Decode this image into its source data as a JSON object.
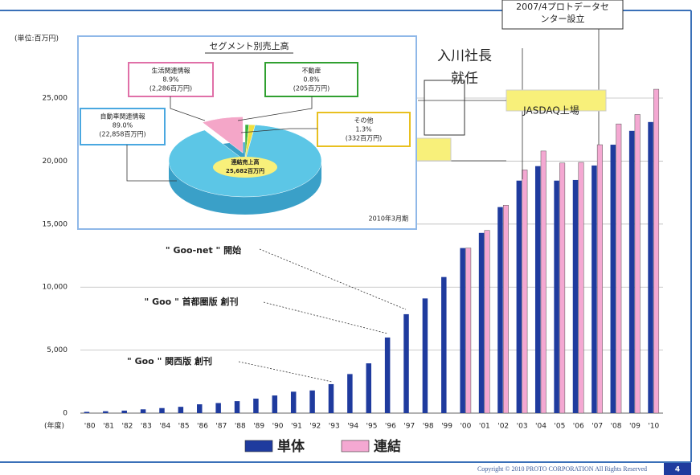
{
  "chart_data": [
    {
      "type": "bar",
      "y_label": "(単位:百万円)",
      "x_label": "(年度)",
      "categories": [
        "'80",
        "'81",
        "'82",
        "'83",
        "'84",
        "'85",
        "'86",
        "'87",
        "'88",
        "'89",
        "'90",
        "'91",
        "'92",
        "'93",
        "'94",
        "'95",
        "'96",
        "'97",
        "'98",
        "'99",
        "'00",
        "'01",
        "'02",
        "'03",
        "'04",
        "'05",
        "'06",
        "'07",
        "'08",
        "'09",
        "'10"
      ],
      "series": [
        {
          "name": "単体",
          "color": "#1f3b9e",
          "values": [
            100,
            150,
            200,
            300,
            400,
            500,
            700,
            800,
            950,
            1150,
            1400,
            1700,
            1800,
            2300,
            3100,
            3950,
            6000,
            7850,
            9100,
            10800,
            13100,
            14300,
            16350,
            18450,
            19600,
            18450,
            18500,
            19650,
            21300,
            22400,
            23100
          ]
        },
        {
          "name": "連結",
          "color": "#f4a8d2",
          "values": [
            null,
            null,
            null,
            null,
            null,
            null,
            null,
            null,
            null,
            null,
            null,
            null,
            null,
            null,
            null,
            null,
            null,
            null,
            null,
            null,
            13100,
            14500,
            16500,
            19300,
            20800,
            19850,
            19900,
            21300,
            22950,
            23700,
            25700
          ]
        }
      ],
      "ylim": [
        0,
        28000
      ],
      "yticks": [
        0,
        {
          "value": 5000,
          "label": "5,000"
        },
        {
          "value": 10000,
          "label": "10,000"
        },
        {
          "value": 15000,
          "label": "15,000"
        },
        {
          "value": 20000,
          "label": "20,000"
        },
        {
          "value": 25000,
          "label": "25,000"
        }
      ],
      "grid": true,
      "annotations": {
        "datacenter": [
          "2007/4プロトデータセ",
          "ンター設立"
        ],
        "president": [
          "入川社長",
          "就任"
        ],
        "jasdaq": "JASDAQ上場",
        "goonet": "\" Goo-net \" 開始",
        "shutoken": "\" Goo \" 首都圏版 創刊",
        "kansai": "\" Goo \" 関西版 創刊"
      }
    },
    {
      "type": "pie",
      "title": "セグメント別売上高",
      "categories": [
        "生活関連情報",
        "不動産",
        "その他",
        "自動車関連情報"
      ],
      "values": [
        8.9,
        0.8,
        1.3,
        89.0
      ],
      "value_labels": [
        "8.9%",
        "0.8%",
        "1.3%",
        "89.0%"
      ],
      "amount_labels": [
        "(2,286百万円)",
        "(205百万円)",
        "(332百万円)",
        "(22,858百万円)"
      ],
      "colors": [
        "#f4a6c8",
        "#3cb040",
        "#f0e040",
        "#5cc6e6"
      ],
      "total_label": [
        "連結売上高",
        "25,682百万円"
      ],
      "period": "2010年3月期"
    }
  ],
  "footer": {
    "copyright": "Copyright © 2010 PROTO CORPORATION All Rights Reserved",
    "page": "4"
  }
}
